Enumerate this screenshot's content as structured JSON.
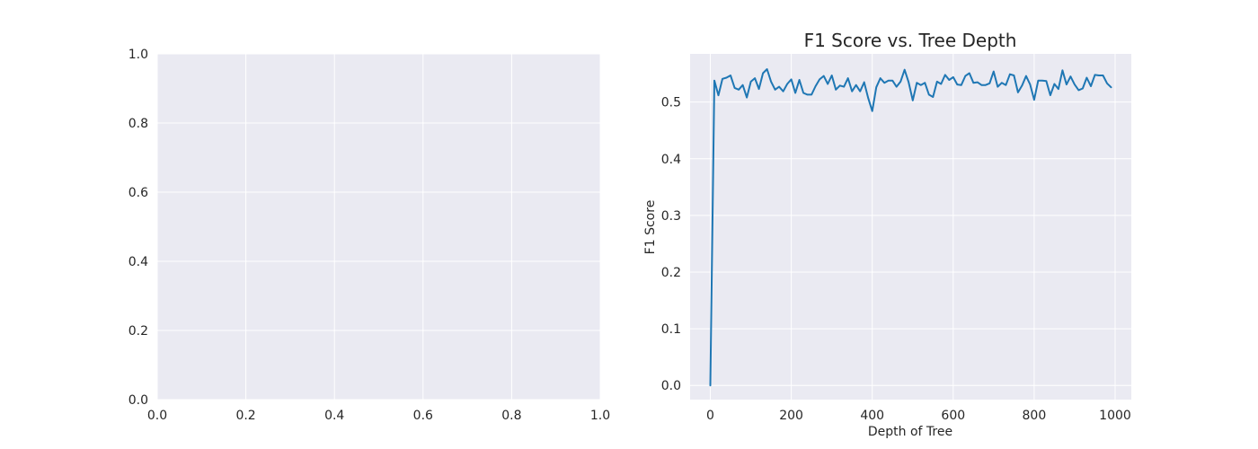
{
  "chart_data": [
    {
      "type": "line",
      "title": "",
      "xlabel": "",
      "ylabel": "",
      "xlim": [
        0,
        1
      ],
      "ylim": [
        0,
        1
      ],
      "xticks": [
        "0.0",
        "0.2",
        "0.4",
        "0.6",
        "0.8",
        "1.0"
      ],
      "yticks": [
        "0.0",
        "0.2",
        "0.4",
        "0.6",
        "0.8",
        "1.0"
      ],
      "grid": true,
      "series": []
    },
    {
      "type": "line",
      "title": "F1 Score vs. Tree Depth",
      "xlabel": "Depth of Tree",
      "ylabel": "F1 Score",
      "xlim": [
        -50,
        1040
      ],
      "ylim": [
        -0.025,
        0.585
      ],
      "xticks": [
        "0",
        "200",
        "400",
        "600",
        "800",
        "1000"
      ],
      "yticks": [
        "0.0",
        "0.1",
        "0.2",
        "0.3",
        "0.4",
        "0.5"
      ],
      "grid": true,
      "colors": {
        "line": "#1f77b4",
        "background": "#eaeaf2",
        "grid": "#ffffff"
      },
      "series": [
        {
          "x": [
            0,
            10,
            20,
            30,
            40,
            50,
            60,
            70,
            80,
            90,
            100,
            110,
            120,
            130,
            140,
            150,
            160,
            170,
            180,
            190,
            200,
            210,
            220,
            230,
            240,
            250,
            260,
            270,
            280,
            290,
            300,
            310,
            320,
            330,
            340,
            350,
            360,
            370,
            380,
            390,
            400,
            410,
            420,
            430,
            440,
            450,
            460,
            470,
            480,
            490,
            500,
            510,
            520,
            530,
            540,
            550,
            560,
            570,
            580,
            590,
            600,
            610,
            620,
            630,
            640,
            650,
            660,
            670,
            680,
            690,
            700,
            710,
            720,
            730,
            740,
            750,
            760,
            770,
            780,
            790,
            800,
            810,
            820,
            830,
            840,
            850,
            860,
            870,
            880,
            890,
            900,
            910,
            920,
            930,
            940,
            950,
            960,
            970,
            980,
            990
          ],
          "y": [
            0.0,
            0.538,
            0.512,
            0.541,
            0.543,
            0.547,
            0.525,
            0.522,
            0.53,
            0.508,
            0.536,
            0.542,
            0.523,
            0.551,
            0.558,
            0.536,
            0.522,
            0.527,
            0.519,
            0.532,
            0.54,
            0.516,
            0.539,
            0.516,
            0.513,
            0.513,
            0.528,
            0.54,
            0.546,
            0.532,
            0.547,
            0.522,
            0.529,
            0.527,
            0.542,
            0.519,
            0.53,
            0.519,
            0.535,
            0.507,
            0.484,
            0.526,
            0.542,
            0.534,
            0.538,
            0.538,
            0.527,
            0.536,
            0.557,
            0.535,
            0.503,
            0.534,
            0.53,
            0.534,
            0.513,
            0.509,
            0.536,
            0.532,
            0.548,
            0.539,
            0.544,
            0.531,
            0.53,
            0.546,
            0.551,
            0.534,
            0.535,
            0.53,
            0.53,
            0.533,
            0.554,
            0.527,
            0.534,
            0.53,
            0.549,
            0.547,
            0.517,
            0.529,
            0.546,
            0.531,
            0.504,
            0.538,
            0.538,
            0.537,
            0.512,
            0.532,
            0.523,
            0.556,
            0.531,
            0.545,
            0.531,
            0.521,
            0.524,
            0.543,
            0.528,
            0.548,
            0.547,
            0.547,
            0.533,
            0.526
          ]
        }
      ]
    }
  ]
}
